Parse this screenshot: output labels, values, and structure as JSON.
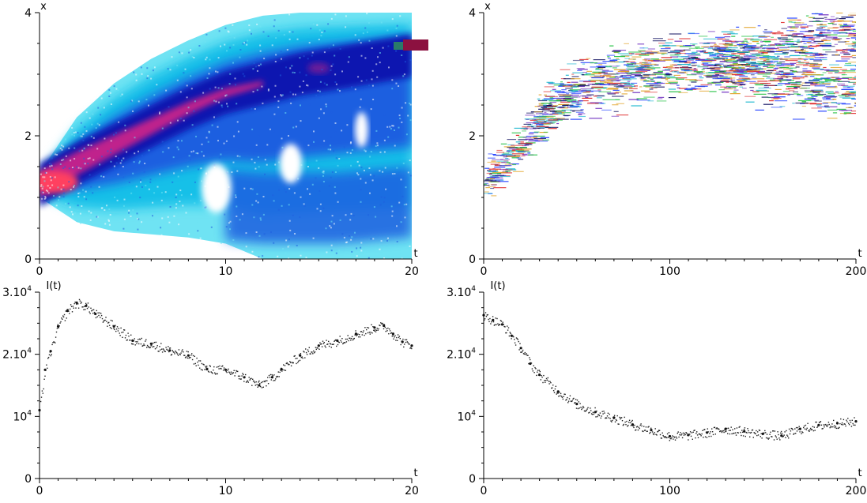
{
  "chart_data": [
    {
      "type": "heatmap",
      "xlabel": "t",
      "ylabel": "x",
      "xlim": [
        0,
        20
      ],
      "ylim": [
        0,
        4
      ],
      "xticks": [
        "0",
        "10",
        "20"
      ],
      "yticks": [
        "0",
        "2",
        "4"
      ],
      "colors": [
        "#6fe3f3",
        "#19c0e8",
        "#1f5fe0",
        "#0a18b0",
        "#6a1a9a",
        "#c0208c",
        "#ff3ea0",
        "#ff4060"
      ],
      "band": {
        "center": [
          [
            0,
            1.2
          ],
          [
            2,
            1.55
          ],
          [
            4,
            1.85
          ],
          [
            6,
            2.15
          ],
          [
            8,
            2.45
          ],
          [
            10,
            2.7
          ],
          [
            12,
            2.85
          ],
          [
            14,
            3.0
          ],
          [
            16,
            3.1
          ],
          [
            18,
            3.2
          ],
          [
            20,
            3.3
          ]
        ],
        "upper": [
          [
            0,
            1.4
          ],
          [
            2,
            2.3
          ],
          [
            4,
            2.85
          ],
          [
            6,
            3.25
          ],
          [
            8,
            3.55
          ],
          [
            10,
            3.8
          ],
          [
            12,
            3.95
          ],
          [
            14,
            4.0
          ],
          [
            16,
            4.0
          ],
          [
            18,
            4.0
          ],
          [
            20,
            4.0
          ]
        ],
        "lower": [
          [
            0,
            1.0
          ],
          [
            2,
            0.6
          ],
          [
            4,
            0.45
          ],
          [
            6,
            0.4
          ],
          [
            8,
            0.35
          ],
          [
            10,
            0.25
          ],
          [
            12,
            0.0
          ],
          [
            14,
            0.0
          ],
          [
            16,
            0.0
          ],
          [
            18,
            0.0
          ],
          [
            20,
            0.0
          ]
        ]
      },
      "lower_branch": [
        [
          10,
          0.9
        ],
        [
          12,
          0.85
        ],
        [
          14,
          0.85
        ],
        [
          16,
          0.85
        ],
        [
          18,
          0.9
        ],
        [
          20,
          0.95
        ]
      ],
      "holes": [
        [
          9.5,
          1.15,
          1.6,
          0.25
        ],
        [
          13.5,
          1.55,
          1.2,
          0.2
        ],
        [
          17.3,
          2.1,
          0.7,
          0.18
        ]
      ]
    },
    {
      "type": "heatmap",
      "xlabel": "t",
      "ylabel": "x",
      "xlim": [
        0,
        200
      ],
      "ylim": [
        0,
        4
      ],
      "xticks": [
        "0",
        "100",
        "200"
      ],
      "yticks": [
        "0",
        "2",
        "4"
      ],
      "colors": [
        "#1e3cff",
        "#e03030",
        "#20c040",
        "#7030c0",
        "#20b8d0",
        "#e0a020",
        "#101060"
      ],
      "branches": [
        [
          [
            0,
            1.3
          ],
          [
            10,
            1.55
          ],
          [
            20,
            1.9
          ],
          [
            30,
            2.35
          ],
          [
            40,
            2.6
          ],
          [
            50,
            2.75
          ],
          [
            60,
            2.9
          ],
          [
            80,
            3.0
          ],
          [
            100,
            3.1
          ],
          [
            120,
            3.2
          ],
          [
            140,
            3.3
          ],
          [
            160,
            3.45
          ],
          [
            180,
            3.6
          ],
          [
            200,
            3.7
          ]
        ],
        [
          [
            120,
            3.15
          ],
          [
            140,
            3.1
          ],
          [
            160,
            2.95
          ],
          [
            170,
            2.85
          ],
          [
            180,
            2.8
          ],
          [
            200,
            2.75
          ]
        ]
      ]
    },
    {
      "type": "scatter",
      "xlabel": "t",
      "ylabel": "I(t)",
      "xlim": [
        0,
        20
      ],
      "ylim": [
        0,
        30000
      ],
      "xticks": [
        "0",
        "10",
        "20"
      ],
      "yticks": [
        {
          "value": 0,
          "label": "0",
          "exp": ""
        },
        {
          "value": 10000,
          "label": "10",
          "exp": "4"
        },
        {
          "value": 20000,
          "label": "2.10",
          "exp": "4"
        },
        {
          "value": 30000,
          "label": "3.10",
          "exp": "4"
        }
      ],
      "x": [
        0,
        0.3,
        0.6,
        1,
        1.5,
        2,
        2.5,
        3,
        4,
        5,
        6,
        7,
        8,
        9,
        10,
        11,
        11.8,
        12.5,
        13,
        14,
        15,
        16,
        17,
        18,
        18.5,
        19,
        19.5,
        20
      ],
      "y": [
        11000,
        17500,
        20500,
        24500,
        27000,
        28300,
        27800,
        26500,
        24500,
        22200,
        21700,
        20600,
        19800,
        17600,
        17500,
        16300,
        15000,
        16300,
        17600,
        19800,
        21400,
        22200,
        23300,
        24300,
        24600,
        23300,
        22000,
        21400
      ]
    },
    {
      "type": "scatter",
      "xlabel": "t",
      "ylabel": "I(t)",
      "xlim": [
        0,
        200
      ],
      "ylim": [
        0,
        30000
      ],
      "xticks": [
        "0",
        "100",
        "200"
      ],
      "yticks": [
        {
          "value": 0,
          "label": "0",
          "exp": ""
        },
        {
          "value": 10000,
          "label": "10",
          "exp": "4"
        },
        {
          "value": 20000,
          "label": "2.10",
          "exp": "4"
        },
        {
          "value": 30000,
          "label": "3.10",
          "exp": "4"
        }
      ],
      "x": [
        0,
        5,
        10,
        15,
        20,
        25,
        30,
        40,
        50,
        60,
        70,
        80,
        90,
        100,
        110,
        120,
        130,
        140,
        150,
        160,
        170,
        180,
        190,
        200
      ],
      "y": [
        26300,
        25500,
        24800,
        23000,
        21000,
        18500,
        16700,
        14000,
        12000,
        10700,
        9800,
        8700,
        7800,
        6800,
        7000,
        7400,
        8000,
        7600,
        7200,
        6900,
        8000,
        8600,
        8900,
        9200
      ]
    }
  ]
}
